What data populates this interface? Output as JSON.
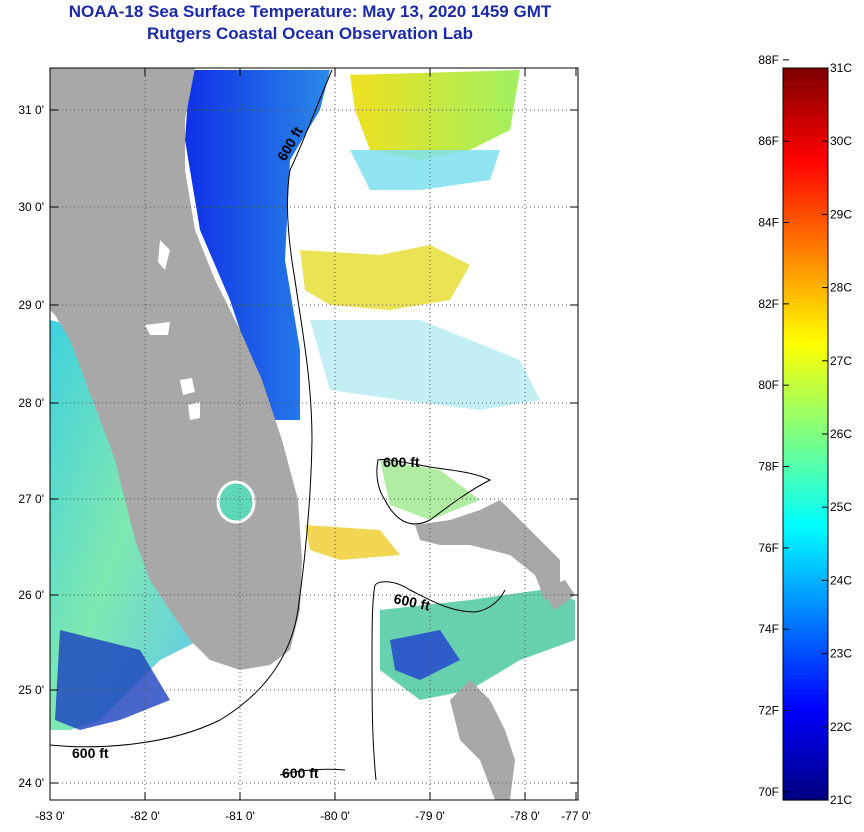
{
  "title_line1": "NOAA-18 Sea Surface Temperature:  May 13, 2020 1459 GMT",
  "title_line2": "Rutgers Coastal Ocean Observation Lab",
  "map": {
    "lon_ticks": [
      "-83 0'",
      "-82 0'",
      "-81 0'",
      "-80 0'",
      "-79 0'",
      "-78 0'",
      "-77 0'"
    ],
    "lat_ticks": [
      "31 0'",
      "30 0'",
      "29 0'",
      "28 0'",
      "27 0'",
      "26 0'",
      "25 0'",
      "24 0'"
    ],
    "contour_labels": [
      "600 ft",
      "600 ft",
      "600 ft",
      "600 ft",
      "600 ft"
    ],
    "colors": {
      "land": "#a8a8a8",
      "cloud": "#ffffff"
    }
  },
  "colorbar": {
    "f_labels": [
      "88F",
      "86F",
      "84F",
      "82F",
      "80F",
      "78F",
      "76F",
      "74F",
      "72F",
      "70F"
    ],
    "c_labels": [
      "31C",
      "30C",
      "29C",
      "28C",
      "27C",
      "26C",
      "25C",
      "24C",
      "23C",
      "22C",
      "21C"
    ],
    "range_c": [
      21,
      31
    ],
    "colormap": "jet"
  }
}
